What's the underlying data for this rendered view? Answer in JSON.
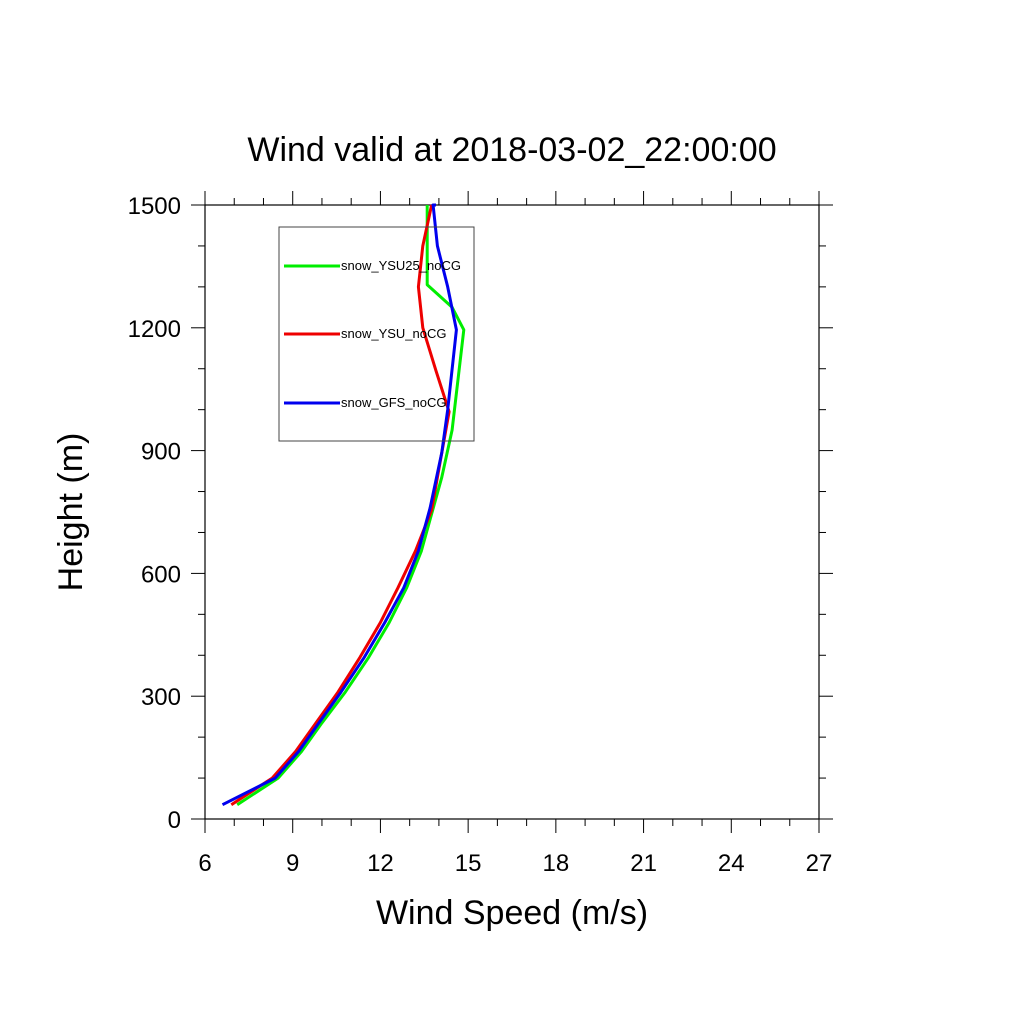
{
  "chart_data": {
    "type": "line",
    "title": "Wind valid at 2018-03-02_22:00:00",
    "xlabel": "Wind Speed (m/s)",
    "ylabel": "Height (m)",
    "xlim": [
      6,
      27
    ],
    "ylim": [
      0,
      1500
    ],
    "xticks": [
      6,
      9,
      12,
      15,
      18,
      21,
      24,
      27
    ],
    "xminor_step": 1,
    "yticks": [
      0,
      300,
      600,
      900,
      1200,
      1500
    ],
    "yminor_step": 100,
    "grid": false,
    "legend_position": "top-left",
    "series": [
      {
        "name": "snow_YSU25_noCG",
        "color": "#00ee00",
        "x": [
          7.1,
          8.5,
          9.3,
          10.0,
          10.8,
          11.6,
          12.3,
          12.9,
          13.4,
          13.75,
          14.1,
          14.45,
          14.85,
          14.45,
          13.6,
          13.6,
          13.6
        ],
        "y": [
          35,
          100,
          165,
          235,
          310,
          395,
          480,
          565,
          655,
          745,
          835,
          950,
          1195,
          1250,
          1305,
          1400,
          1500
        ]
      },
      {
        "name": "snow_YSU_noCG",
        "color": "#ee0000",
        "x": [
          6.9,
          8.3,
          9.1,
          9.8,
          10.55,
          11.3,
          12.0,
          12.6,
          13.2,
          13.75,
          14.35,
          13.9,
          13.45,
          13.3,
          13.45,
          13.75
        ],
        "y": [
          35,
          100,
          165,
          235,
          310,
          395,
          480,
          565,
          655,
          755,
          995,
          1095,
          1200,
          1300,
          1400,
          1500
        ]
      },
      {
        "name": "snow_GFS_noCG",
        "color": "#0000ee",
        "x": [
          6.6,
          8.4,
          9.2,
          9.9,
          10.65,
          11.45,
          12.15,
          12.8,
          13.3,
          13.7,
          14.1,
          14.3,
          14.6,
          14.3,
          13.95,
          13.8,
          13.9
        ],
        "y": [
          35,
          100,
          165,
          235,
          310,
          395,
          480,
          565,
          655,
          760,
          895,
          1000,
          1195,
          1300,
          1400,
          1500,
          1500
        ]
      }
    ]
  }
}
